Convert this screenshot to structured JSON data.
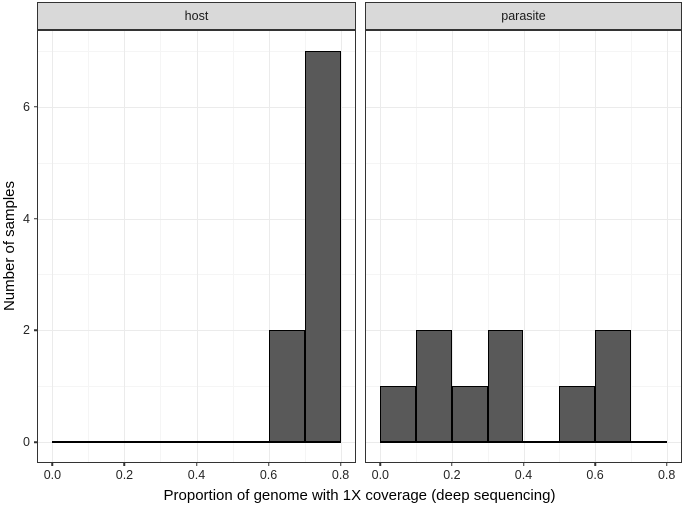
{
  "chart_data": {
    "type": "bar",
    "subtype": "faceted-histogram",
    "xlabel": "Proportion of genome with 1X coverage (deep sequencing)",
    "ylabel": "Number of samples",
    "bin_edges": [
      0.0,
      0.1,
      0.2,
      0.3,
      0.4,
      0.5,
      0.6,
      0.7,
      0.8
    ],
    "facets": [
      {
        "label": "host",
        "counts": [
          0,
          0,
          0,
          0,
          0,
          0,
          2,
          7
        ]
      },
      {
        "label": "parasite",
        "counts": [
          1,
          2,
          1,
          2,
          0,
          1,
          2,
          0
        ]
      }
    ],
    "baseline_extent": [
      0.0,
      0.8
    ],
    "x_range_expanded": [
      -0.04,
      0.84
    ],
    "y_range_expanded": [
      -0.35,
      7.35
    ],
    "x_ticks": {
      "values": [
        0.0,
        0.2,
        0.4,
        0.6,
        0.8
      ],
      "labels": [
        "0.0",
        "0.2",
        "0.4",
        "0.6",
        "0.8"
      ]
    },
    "y_ticks": {
      "values": [
        0,
        2,
        4,
        6
      ],
      "labels": [
        "0",
        "2",
        "4",
        "6"
      ]
    },
    "x_minor": [
      0.1,
      0.3,
      0.5,
      0.7
    ],
    "y_minor": [
      1,
      3,
      5,
      7
    ],
    "grid": true,
    "legend": "none",
    "colors": {
      "bar_fill": "#595959",
      "bar_stroke": "#000000",
      "strip_fill": "#d9d9d9",
      "panel_border": "#333333",
      "grid_major": "#ebebeb",
      "grid_minor": "#f5f5f5"
    }
  }
}
